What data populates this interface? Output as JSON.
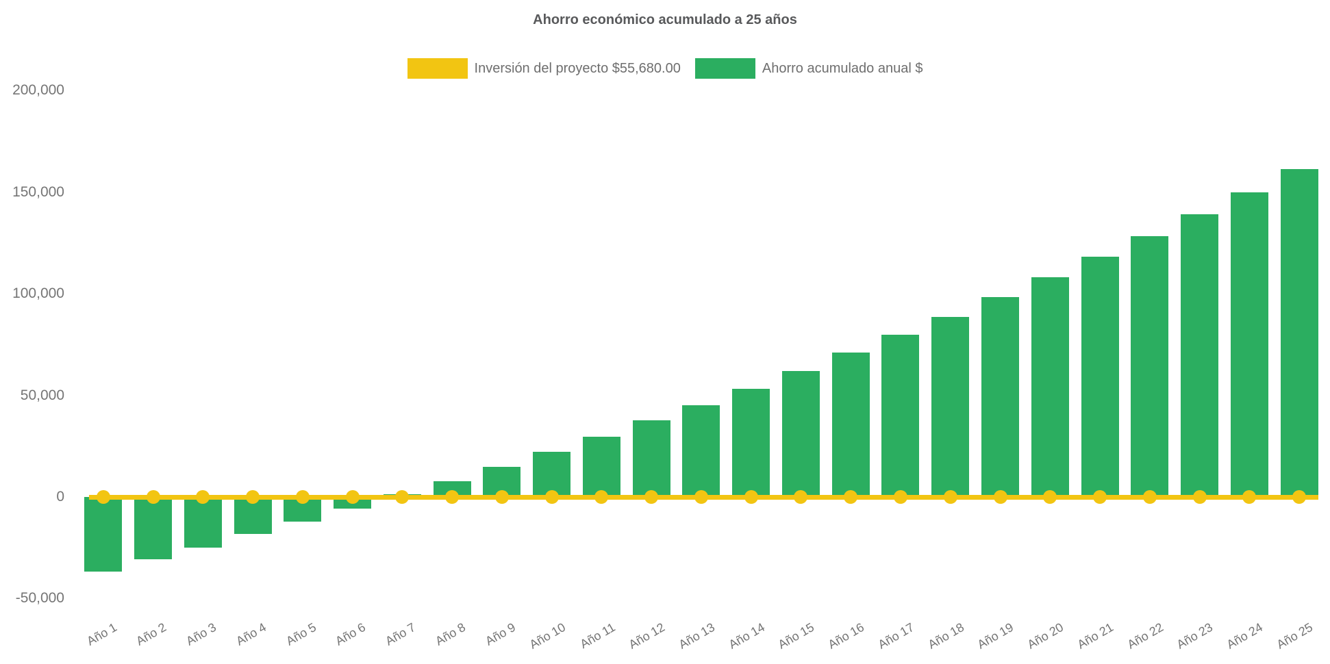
{
  "chart_data": {
    "type": "bar",
    "title": "Ahorro económico acumulado a 25 años",
    "categories": [
      "Año 1",
      "Año 2",
      "Año 3",
      "Año 4",
      "Año 5",
      "Año 6",
      "Año 7",
      "Año 8",
      "Año 9",
      "Año 10",
      "Año 11",
      "Año 12",
      "Año 13",
      "Año 14",
      "Año 15",
      "Año 16",
      "Año 17",
      "Año 18",
      "Año 19",
      "Año 20",
      "Año 21",
      "Año 22",
      "Año 23",
      "Año 24",
      "Año 25"
    ],
    "series": [
      {
        "name": "Inversión del proyecto $55,680.00",
        "type": "line",
        "color": "#F2C512",
        "point_style": "circle",
        "constant_value": 0
      },
      {
        "name": "Ahorro acumulado anual $",
        "type": "bar",
        "color": "#2BAE60",
        "values": [
          -36600,
          -30600,
          -24800,
          -18300,
          -12200,
          -5800,
          1300,
          7800,
          14800,
          22400,
          29600,
          37600,
          45200,
          53300,
          62000,
          71000,
          79900,
          88600,
          98400,
          108200,
          118300,
          128500,
          139100,
          149900,
          161400
        ]
      }
    ],
    "y_axis": {
      "min": -50000,
      "max": 200000,
      "ticks": [
        {
          "label": "200,000",
          "value": 200000
        },
        {
          "label": "150,000",
          "value": 150000
        },
        {
          "label": "100,000",
          "value": 100000
        },
        {
          "label": "50,000",
          "value": 50000
        },
        {
          "label": "0",
          "value": 0
        },
        {
          "label": "-50,000",
          "value": -50000
        }
      ]
    },
    "grid": false,
    "legend_position": "top-center",
    "colors": {
      "background": "#FFFFFF",
      "title_text": "#58595B",
      "axis_labels": "#757575",
      "legend_text": "#6E6E6E",
      "investment_line": "#F2C512",
      "savings_bar": "#2BAE60"
    }
  }
}
